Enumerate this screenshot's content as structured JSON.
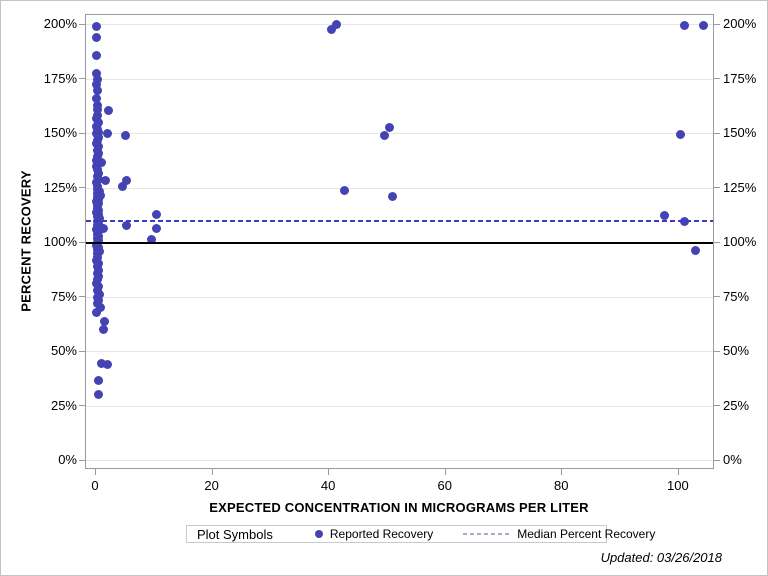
{
  "chart_data": {
    "type": "scatter",
    "title": "",
    "xlabel": "EXPECTED CONCENTRATION IN MICROGRAMS PER LITER",
    "ylabel": "PERCENT RECOVERY",
    "x_ticks": [
      0,
      20,
      40,
      60,
      80,
      100
    ],
    "y_ticks": [
      0,
      25,
      50,
      75,
      100,
      125,
      150,
      175,
      200
    ],
    "y_tick_suffix": "%",
    "xlim": [
      -1.72,
      106.2
    ],
    "ylim": [
      -4.13,
      204.5
    ],
    "grid": "horizontal",
    "axis_color": "#9a9a9a",
    "grid_color": "#e6e6e6",
    "series": [
      {
        "name": "Reported Recovery",
        "type": "scatter",
        "color": "#4343b4",
        "points": [
          [
            0.1,
            199
          ],
          [
            0.15,
            194
          ],
          [
            0.15,
            186
          ],
          [
            0.15,
            177.5
          ],
          [
            0.2,
            175
          ],
          [
            0.15,
            172.5
          ],
          [
            0.25,
            170
          ],
          [
            0.15,
            166
          ],
          [
            0.25,
            163
          ],
          [
            0.2,
            161
          ],
          [
            2.2,
            160.5
          ],
          [
            0.3,
            158.5
          ],
          [
            0.1,
            157
          ],
          [
            0.35,
            155
          ],
          [
            0.15,
            153.5
          ],
          [
            0.25,
            152
          ],
          [
            0.4,
            150.5
          ],
          [
            0.15,
            150
          ],
          [
            2.0,
            150
          ],
          [
            5.1,
            149.3
          ],
          [
            0.5,
            148.5
          ],
          [
            0.25,
            147
          ],
          [
            0.15,
            145.5
          ],
          [
            0.35,
            144
          ],
          [
            0.2,
            142.5
          ],
          [
            0.45,
            141
          ],
          [
            0.25,
            139.5
          ],
          [
            0.15,
            138
          ],
          [
            1.0,
            137
          ],
          [
            0.35,
            136.5
          ],
          [
            0.15,
            135
          ],
          [
            0.25,
            133.5
          ],
          [
            0.45,
            132
          ],
          [
            0.2,
            130.5
          ],
          [
            0.35,
            129
          ],
          [
            1.6,
            128.5
          ],
          [
            5.2,
            128.5
          ],
          [
            0.15,
            127.5
          ],
          [
            0.3,
            126
          ],
          [
            4.5,
            125.7
          ],
          [
            0.25,
            124.5
          ],
          [
            0.55,
            123.5
          ],
          [
            0.2,
            122.5
          ],
          [
            0.7,
            121.8
          ],
          [
            0.25,
            121
          ],
          [
            0.4,
            120
          ],
          [
            0.15,
            119
          ],
          [
            0.45,
            118
          ],
          [
            0.25,
            117
          ],
          [
            0.2,
            116
          ],
          [
            0.5,
            115
          ],
          [
            0.15,
            114
          ],
          [
            0.35,
            113
          ],
          [
            0.25,
            112
          ],
          [
            0.6,
            111
          ],
          [
            0.2,
            110
          ],
          [
            0.4,
            109
          ],
          [
            0.25,
            108
          ],
          [
            1.2,
            106.5
          ],
          [
            0.15,
            106
          ],
          [
            0.45,
            105
          ],
          [
            0.25,
            104
          ],
          [
            0.35,
            103
          ],
          [
            0.2,
            102
          ],
          [
            0.5,
            101
          ],
          [
            0.25,
            100
          ],
          [
            0.15,
            99
          ],
          [
            0.4,
            98
          ],
          [
            0.25,
            97
          ],
          [
            0.55,
            96
          ],
          [
            0.2,
            95
          ],
          [
            0.3,
            93.5
          ],
          [
            0.15,
            92
          ],
          [
            0.45,
            90.5
          ],
          [
            0.25,
            89
          ],
          [
            0.35,
            87.5
          ],
          [
            0.2,
            86
          ],
          [
            0.5,
            84.5
          ],
          [
            0.25,
            83
          ],
          [
            0.15,
            81.5
          ],
          [
            0.4,
            80
          ],
          [
            0.25,
            78
          ],
          [
            0.55,
            76.5
          ],
          [
            0.2,
            75
          ],
          [
            0.35,
            73.5
          ],
          [
            0.25,
            72
          ],
          [
            0.7,
            70.5
          ],
          [
            0.15,
            68.3
          ],
          [
            1.5,
            63.8
          ],
          [
            1.3,
            60.2
          ],
          [
            1.0,
            44.8
          ],
          [
            1.9,
            44.2
          ],
          [
            0.35,
            36.7
          ],
          [
            0.5,
            30.7
          ],
          [
            5.3,
            108
          ],
          [
            10.4,
            113
          ],
          [
            10.4,
            106.4
          ],
          [
            9.6,
            101.4
          ],
          [
            40.4,
            198
          ],
          [
            41.3,
            200
          ],
          [
            42.7,
            124
          ],
          [
            49.5,
            149.3
          ],
          [
            50.3,
            152.8
          ],
          [
            50.8,
            121.5
          ],
          [
            97.6,
            112.4
          ],
          [
            100.9,
            109.6
          ],
          [
            100.2,
            149.7
          ],
          [
            101.0,
            199.5
          ],
          [
            104.2,
            199.5
          ],
          [
            102.9,
            96.3
          ]
        ]
      },
      {
        "name": "Median Percent Recovery",
        "type": "reference-line",
        "style": "dashed",
        "color": "#3a3ac6",
        "y": 110
      },
      {
        "name": "100 Percent Reference",
        "type": "reference-line",
        "style": "solid",
        "color": "#000000",
        "y": 100
      }
    ],
    "legend": {
      "title": "Plot Symbols",
      "position": "bottom",
      "entries": [
        {
          "label": "Reported Recovery",
          "marker": "dot",
          "color": "#4343b4"
        },
        {
          "label": "Median Percent Recovery",
          "marker": "dashed-line",
          "color": "#a9a9c9"
        }
      ]
    }
  },
  "footer": {
    "updated": "Updated: 03/26/2018"
  }
}
